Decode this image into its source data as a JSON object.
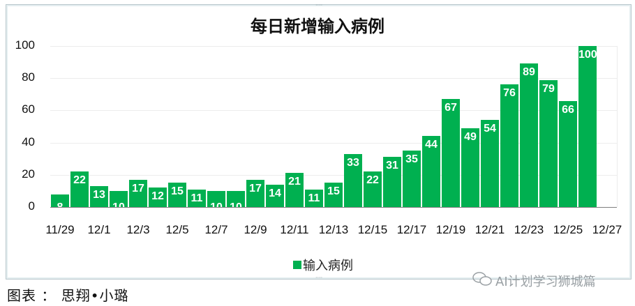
{
  "chart_data": {
    "type": "bar",
    "title": "每日新增输入病例",
    "xlabel": "",
    "ylabel": "",
    "ylim": [
      0,
      100
    ],
    "yticks": [
      0,
      20,
      40,
      60,
      80,
      100
    ],
    "grid": true,
    "legend_position": "bottom",
    "x_tick_labels": [
      "11/29",
      "12/1",
      "12/3",
      "12/5",
      "12/7",
      "12/9",
      "12/11",
      "12/13",
      "12/15",
      "12/17",
      "12/19",
      "12/21",
      "12/23",
      "12/25",
      "12/27"
    ],
    "categories": [
      "11/29",
      "11/30",
      "12/1",
      "12/2",
      "12/3",
      "12/4",
      "12/5",
      "12/6",
      "12/7",
      "12/8",
      "12/9",
      "12/10",
      "12/11",
      "12/12",
      "12/13",
      "12/14",
      "12/15",
      "12/16",
      "12/17",
      "12/18",
      "12/19",
      "12/20",
      "12/21",
      "12/22",
      "12/23",
      "12/24",
      "12/25",
      "12/26"
    ],
    "series": [
      {
        "name": "输入病例",
        "color": "#00b050",
        "values": [
          8,
          22,
          13,
          10,
          17,
          12,
          15,
          11,
          10,
          10,
          17,
          14,
          21,
          11,
          15,
          33,
          22,
          31,
          35,
          44,
          67,
          49,
          54,
          76,
          89,
          79,
          66,
          100
        ]
      }
    ]
  },
  "legend": {
    "label": "输入病例"
  },
  "caption": "图表 ： 思翔•小璐",
  "watermark": "AI计划学习狮城篇"
}
